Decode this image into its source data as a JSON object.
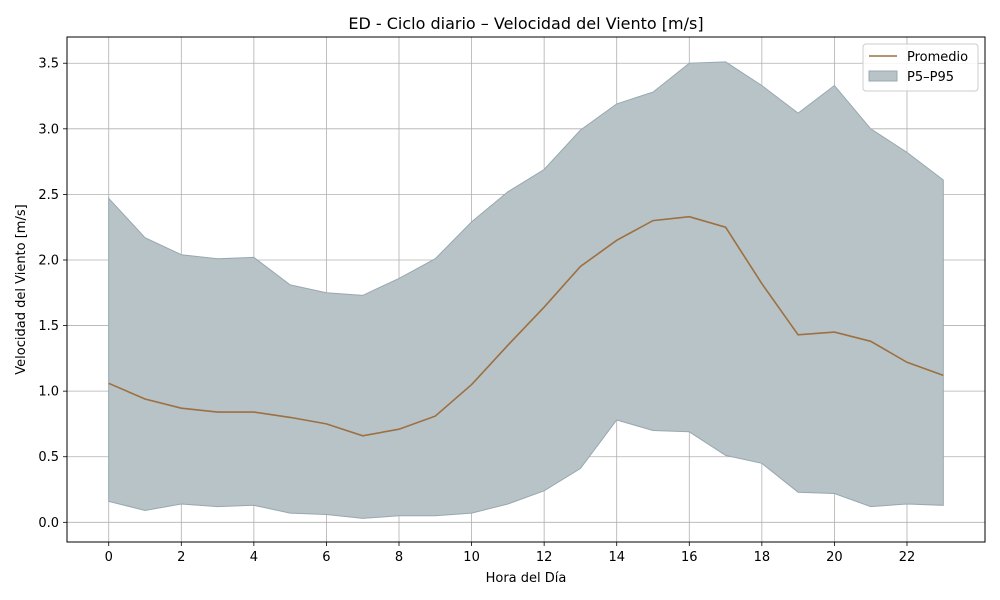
{
  "chart_data": {
    "type": "line",
    "title": "ED - Ciclo diario – Velocidad del Viento [m/s]",
    "xlabel": "Hora del Día",
    "ylabel": "Velocidad del Viento [m/s]",
    "x": [
      0,
      1,
      2,
      3,
      4,
      5,
      6,
      7,
      8,
      9,
      10,
      11,
      12,
      13,
      14,
      15,
      16,
      17,
      18,
      19,
      20,
      21,
      22,
      23
    ],
    "xlim": [
      -1.15,
      24.15
    ],
    "ylim": [
      -0.15,
      3.7
    ],
    "xticks": [
      0,
      2,
      4,
      6,
      8,
      10,
      12,
      14,
      16,
      18,
      20,
      22
    ],
    "yticks": [
      0.0,
      0.5,
      1.0,
      1.5,
      2.0,
      2.5,
      3.0,
      3.5
    ],
    "xtick_labels": [
      "0",
      "2",
      "4",
      "6",
      "8",
      "10",
      "12",
      "14",
      "16",
      "18",
      "20",
      "22"
    ],
    "ytick_labels": [
      "0.0",
      "0.5",
      "1.0",
      "1.5",
      "2.0",
      "2.5",
      "3.0",
      "3.5"
    ],
    "grid": true,
    "legend_position": "top-right",
    "series": [
      {
        "name": "Promedio",
        "kind": "line",
        "color": "#9c7040",
        "values": [
          1.06,
          0.94,
          0.87,
          0.84,
          0.84,
          0.8,
          0.75,
          0.66,
          0.71,
          0.81,
          1.05,
          1.35,
          1.64,
          1.95,
          2.15,
          2.3,
          2.33,
          2.25,
          1.82,
          1.43,
          1.45,
          1.38,
          1.22,
          1.12
        ]
      },
      {
        "name": "P5–P95",
        "kind": "band",
        "color": "#b8c3c8",
        "edge_color": "#97a8b1",
        "lower": [
          0.16,
          0.09,
          0.14,
          0.12,
          0.13,
          0.07,
          0.06,
          0.03,
          0.05,
          0.05,
          0.07,
          0.14,
          0.24,
          0.41,
          0.78,
          0.7,
          0.69,
          0.51,
          0.45,
          0.23,
          0.22,
          0.12,
          0.14,
          0.13
        ],
        "upper": [
          2.47,
          2.17,
          2.04,
          2.01,
          2.02,
          1.81,
          1.75,
          1.73,
          1.86,
          2.01,
          2.29,
          2.52,
          2.69,
          2.99,
          3.19,
          3.28,
          3.5,
          3.51,
          3.33,
          3.12,
          3.33,
          3.0,
          2.82,
          2.61
        ]
      }
    ]
  }
}
